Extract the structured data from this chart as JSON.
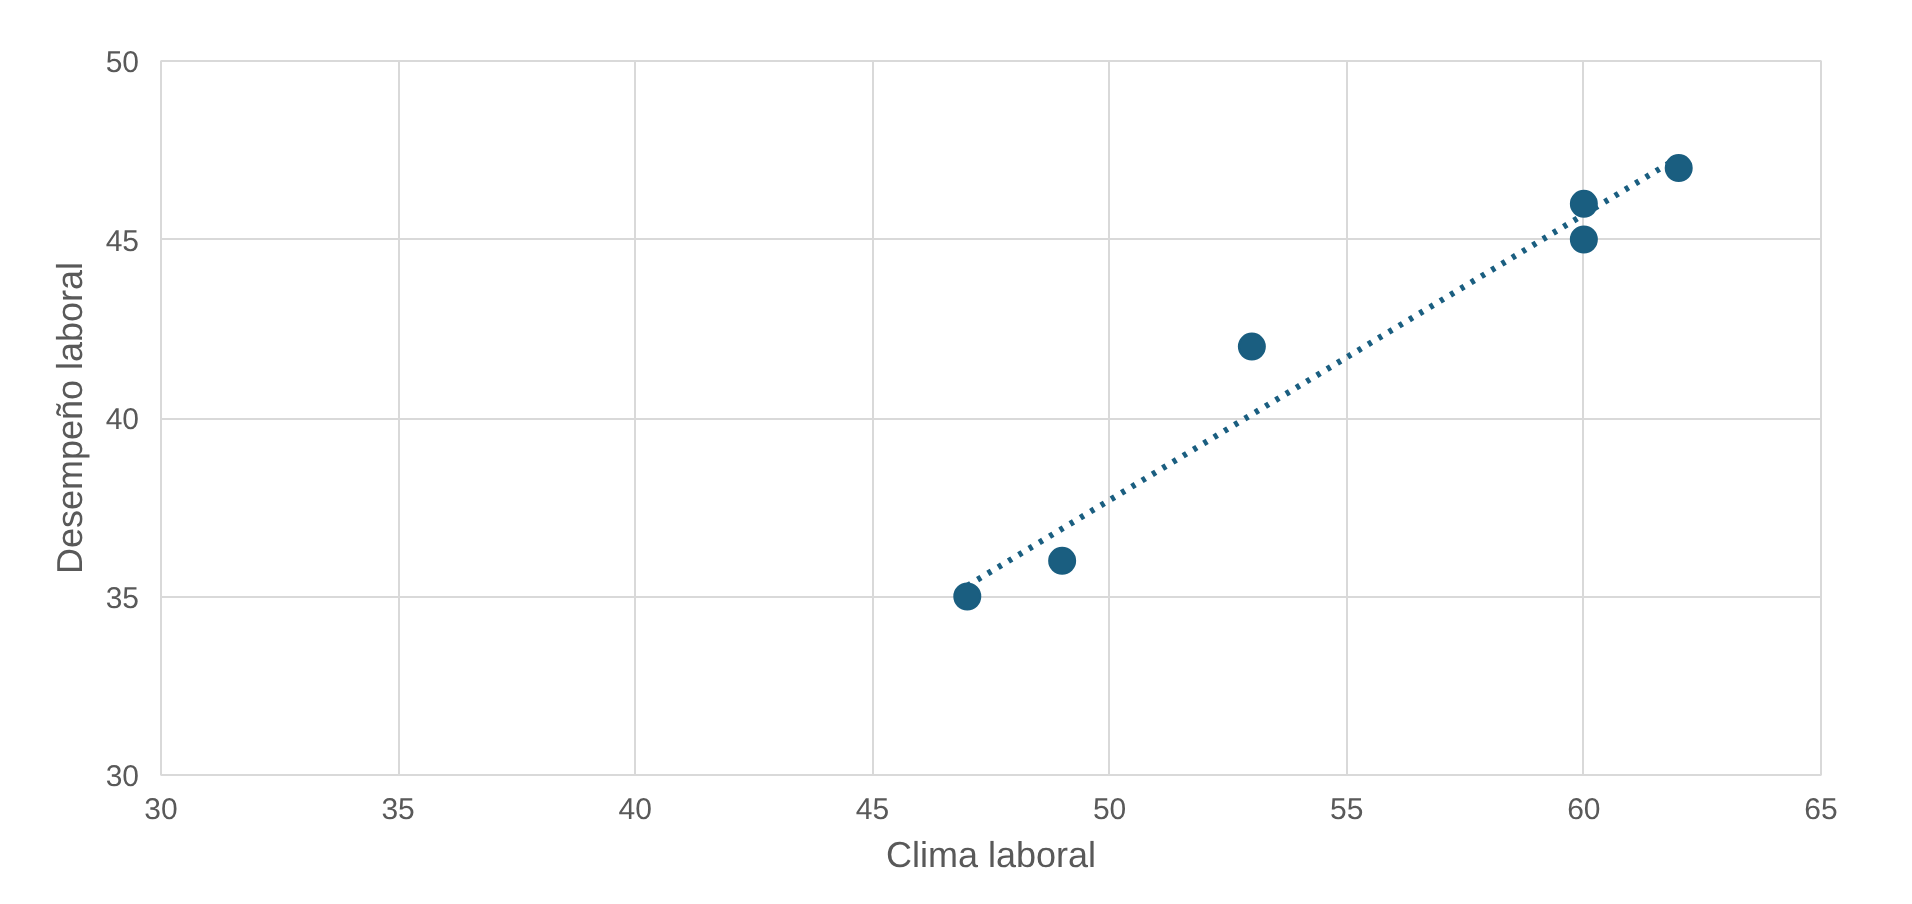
{
  "chart_data": {
    "type": "scatter",
    "xlabel": "Clima laboral",
    "ylabel": "Desempeño laboral",
    "xlim": [
      30,
      65
    ],
    "xticks": [
      30,
      35,
      40,
      45,
      50,
      55,
      60,
      65
    ],
    "ylim": [
      30,
      50
    ],
    "yticks": [
      30,
      35,
      40,
      45,
      50
    ],
    "grid": true,
    "marker": "circle",
    "series": [
      {
        "color": "#1a5e80",
        "x": [
          47,
          49,
          53,
          60,
          60,
          62
        ],
        "values": [
          35,
          36,
          42,
          46,
          45,
          47
        ]
      },
      {
        "type": "line",
        "color": "#1a5e80",
        "line_style": "dotted",
        "marker": "none",
        "x": [
          47,
          62
        ],
        "values": [
          35.3,
          47.3
        ]
      }
    ]
  }
}
